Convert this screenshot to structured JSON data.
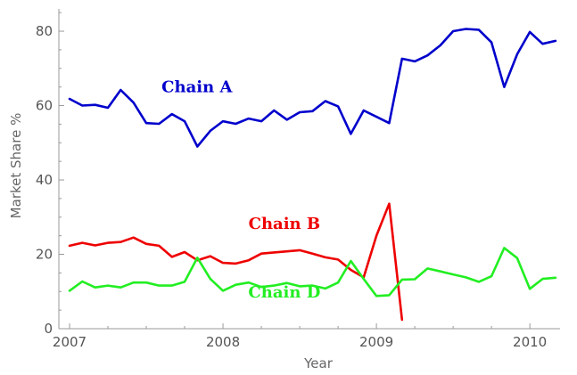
{
  "chart_data": {
    "type": "line",
    "title": "",
    "xlabel": "Year",
    "ylabel": "Market Share %",
    "xlim": [
      2007,
      2010.22
    ],
    "ylim": [
      0,
      86
    ],
    "xticks": [
      2007,
      2008,
      2009,
      2010
    ],
    "xtick_labels": [
      "2007",
      "2008",
      "2009",
      "2010"
    ],
    "yticks": [
      0,
      20,
      40,
      60,
      80
    ],
    "ytick_labels": [
      "0",
      "20",
      "40",
      "60",
      "80"
    ],
    "grid": false,
    "legend": "none",
    "series": [
      {
        "name": "Chain A",
        "color": "#0000cc",
        "label_at": [
          2007.83,
          63.6
        ],
        "x": [
          2007.0,
          2007.083,
          2007.167,
          2007.25,
          2007.333,
          2007.417,
          2007.5,
          2007.583,
          2007.667,
          2007.75,
          2007.833,
          2007.917,
          2008.0,
          2008.083,
          2008.167,
          2008.25,
          2008.333,
          2008.417,
          2008.5,
          2008.583,
          2008.667,
          2008.75,
          2008.833,
          2008.917,
          2009.0,
          2009.083,
          2009.167,
          2009.25,
          2009.333,
          2009.417,
          2009.5,
          2009.583,
          2009.667,
          2009.75,
          2009.833,
          2009.917,
          2010.0,
          2010.083,
          2010.167
        ],
        "y": [
          61.8,
          60.0,
          60.2,
          59.4,
          64.2,
          60.8,
          55.3,
          55.1,
          57.7,
          55.8,
          49.0,
          53.2,
          55.8,
          55.1,
          56.5,
          55.8,
          58.7,
          56.2,
          58.2,
          58.5,
          61.2,
          59.8,
          52.4,
          58.7,
          57.0,
          55.3,
          72.6,
          71.9,
          73.5,
          76.2,
          80.0,
          80.6,
          80.4,
          77.0,
          65.0,
          73.8,
          79.8,
          76.6,
          77.4
        ]
      },
      {
        "name": "Chain B",
        "color": "#ee0000",
        "label_at": [
          2008.4,
          26.8
        ],
        "x": [
          2007.0,
          2007.083,
          2007.167,
          2007.25,
          2007.333,
          2007.417,
          2007.5,
          2007.583,
          2007.667,
          2007.75,
          2007.833,
          2007.917,
          2008.0,
          2008.083,
          2008.167,
          2008.25,
          2008.333,
          2008.417,
          2008.5,
          2008.583,
          2008.667,
          2008.75,
          2008.833,
          2008.917,
          2009.0,
          2009.083,
          2009.167
        ],
        "y": [
          22.3,
          23.1,
          22.4,
          23.1,
          23.3,
          24.5,
          22.8,
          22.3,
          19.3,
          20.6,
          18.4,
          19.5,
          17.7,
          17.5,
          18.4,
          20.2,
          20.5,
          20.8,
          21.1,
          20.2,
          19.2,
          18.6,
          15.8,
          13.8,
          25.0,
          33.6,
          2.4
        ]
      },
      {
        "name": "Chain D",
        "color": "#22ee22",
        "label_at": [
          2008.4,
          8.4
        ],
        "x": [
          2007.0,
          2007.083,
          2007.167,
          2007.25,
          2007.333,
          2007.417,
          2007.5,
          2007.583,
          2007.667,
          2007.75,
          2007.833,
          2007.917,
          2008.0,
          2008.083,
          2008.167,
          2008.25,
          2008.333,
          2008.417,
          2008.5,
          2008.583,
          2008.667,
          2008.75,
          2008.833,
          2008.917,
          2009.0,
          2009.083,
          2009.167,
          2009.25,
          2009.333,
          2009.417,
          2009.5,
          2009.583,
          2009.667,
          2009.75,
          2009.833,
          2009.917,
          2010.0,
          2010.083,
          2010.167
        ],
        "y": [
          10.2,
          12.7,
          11.1,
          11.6,
          11.1,
          12.4,
          12.4,
          11.6,
          11.6,
          12.6,
          19.1,
          13.4,
          10.2,
          11.8,
          12.4,
          11.2,
          11.6,
          12.3,
          11.4,
          11.6,
          10.8,
          12.4,
          18.2,
          13.4,
          8.8,
          9.0,
          13.2,
          13.3,
          16.2,
          15.4,
          14.6,
          13.8,
          12.6,
          14.1,
          21.7,
          19.0,
          10.7,
          13.4,
          13.7
        ]
      }
    ]
  }
}
